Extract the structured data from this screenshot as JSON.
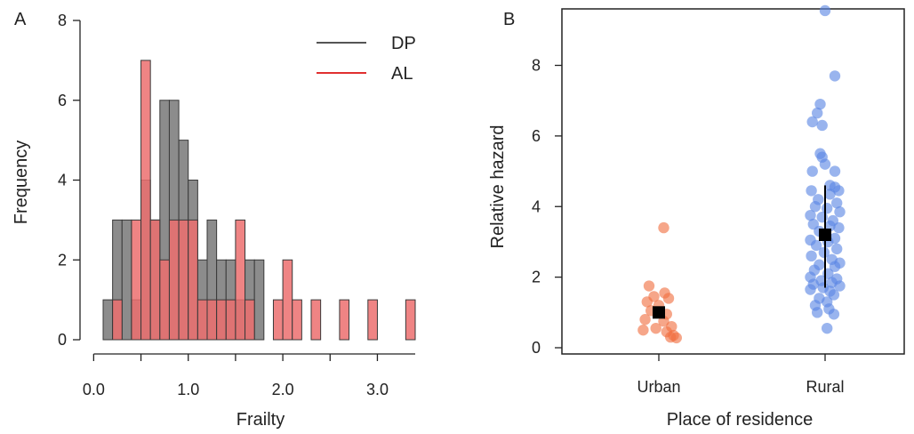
{
  "chart_data": [
    {
      "type": "bar",
      "panel_label": "A",
      "xlabel": "Frailty",
      "ylabel": "Frequency",
      "xlim": [
        0.1,
        3.4
      ],
      "ylim": [
        0,
        8
      ],
      "xticks": [
        0.0,
        1.0,
        2.0,
        3.0
      ],
      "xtick_labels": [
        "0.0",
        "1.0",
        "2.0",
        "3.0"
      ],
      "yticks": [
        0,
        2,
        4,
        6,
        8
      ],
      "ytick_labels": [
        "0",
        "2",
        "4",
        "6",
        "8"
      ],
      "legend_position": "top-right",
      "bin_width": 0.1,
      "x": [
        0.15,
        0.25,
        0.35,
        0.45,
        0.55,
        0.65,
        0.75,
        0.85,
        0.95,
        1.05,
        1.15,
        1.25,
        1.35,
        1.45,
        1.55,
        1.65,
        1.75,
        1.85,
        1.95,
        2.05,
        2.15,
        2.25,
        2.35,
        2.45,
        2.55,
        2.65,
        2.75,
        2.85,
        2.95,
        3.05,
        3.15,
        3.25,
        3.35
      ],
      "series": [
        {
          "name": "DP",
          "color": "#8c8c8c",
          "line_color": "#555555",
          "values": [
            1,
            3,
            3,
            1,
            4,
            3,
            6,
            6,
            5,
            4,
            2,
            3,
            2,
            2,
            1,
            2,
            2,
            0,
            0,
            0,
            0,
            0,
            0,
            0,
            0,
            0,
            0,
            0,
            0,
            0,
            0,
            0,
            0
          ]
        },
        {
          "name": "AL",
          "color": "#ec6f6f",
          "line_color": "#e03030",
          "values": [
            0,
            1,
            0,
            3,
            7,
            3,
            2,
            3,
            3,
            3,
            1,
            1,
            1,
            1,
            3,
            1,
            0,
            0,
            1,
            2,
            1,
            0,
            1,
            0,
            0,
            1,
            0,
            0,
            1,
            0,
            0,
            0,
            1
          ]
        }
      ]
    },
    {
      "type": "scatter",
      "panel_label": "B",
      "xlabel": "Place of residence",
      "ylabel": "Relative hazard",
      "categories": [
        "Urban",
        "Rural"
      ],
      "ylim": [
        0,
        9.6
      ],
      "yticks": [
        0,
        2,
        4,
        6,
        8
      ],
      "ytick_labels": [
        "0",
        "2",
        "4",
        "6",
        "8"
      ],
      "series": [
        {
          "name": "Urban",
          "color": "#f07040",
          "points": [
            [
              -0.1,
              1.75
            ],
            [
              0.06,
              1.55
            ],
            [
              -0.05,
              1.45
            ],
            [
              0.1,
              1.4
            ],
            [
              -0.12,
              1.3
            ],
            [
              0.0,
              1.2
            ],
            [
              -0.08,
              1.05
            ],
            [
              0.08,
              0.95
            ],
            [
              -0.14,
              0.8
            ],
            [
              0.05,
              0.75
            ],
            [
              0.13,
              0.6
            ],
            [
              -0.03,
              0.55
            ],
            [
              -0.16,
              0.5
            ],
            [
              0.08,
              0.45
            ],
            [
              0.12,
              0.3
            ],
            [
              0.18,
              0.28
            ],
            [
              0.15,
              0.35
            ],
            [
              0.05,
              3.4
            ]
          ],
          "mean": 1.0,
          "ci": [
            0.9,
            1.1
          ]
        },
        {
          "name": "Rural",
          "color": "#5a86e4",
          "points": [
            [
              0.0,
              9.55
            ],
            [
              0.1,
              7.7
            ],
            [
              -0.05,
              6.9
            ],
            [
              -0.08,
              6.65
            ],
            [
              -0.13,
              6.4
            ],
            [
              -0.03,
              6.3
            ],
            [
              -0.05,
              5.5
            ],
            [
              -0.03,
              5.4
            ],
            [
              0.0,
              5.2
            ],
            [
              -0.13,
              5.0
            ],
            [
              0.1,
              5.0
            ],
            [
              0.05,
              4.6
            ],
            [
              0.1,
              4.55
            ],
            [
              -0.14,
              4.45
            ],
            [
              0.14,
              4.45
            ],
            [
              0.05,
              4.35
            ],
            [
              -0.07,
              4.2
            ],
            [
              0.12,
              4.1
            ],
            [
              -0.1,
              4.0
            ],
            [
              0.02,
              3.95
            ],
            [
              0.15,
              3.85
            ],
            [
              -0.15,
              3.75
            ],
            [
              -0.03,
              3.7
            ],
            [
              0.08,
              3.6
            ],
            [
              -0.12,
              3.5
            ],
            [
              0.05,
              3.45
            ],
            [
              0.14,
              3.4
            ],
            [
              -0.06,
              3.3
            ],
            [
              0.1,
              3.1
            ],
            [
              -0.15,
              3.05
            ],
            [
              0.03,
              3.0
            ],
            [
              -0.09,
              2.9
            ],
            [
              0.12,
              2.8
            ],
            [
              -0.01,
              2.7
            ],
            [
              -0.14,
              2.6
            ],
            [
              0.07,
              2.5
            ],
            [
              0.15,
              2.4
            ],
            [
              -0.06,
              2.35
            ],
            [
              0.1,
              2.3
            ],
            [
              -0.11,
              2.2
            ],
            [
              0.03,
              2.1
            ],
            [
              -0.15,
              2.0
            ],
            [
              0.12,
              1.95
            ],
            [
              -0.04,
              1.9
            ],
            [
              0.07,
              1.85
            ],
            [
              -0.12,
              1.8
            ],
            [
              0.15,
              1.75
            ],
            [
              -0.02,
              1.7
            ],
            [
              -0.15,
              1.65
            ],
            [
              0.05,
              1.6
            ],
            [
              0.09,
              1.5
            ],
            [
              -0.06,
              1.4
            ],
            [
              0.02,
              1.3
            ],
            [
              -0.1,
              1.2
            ],
            [
              0.04,
              1.1
            ],
            [
              -0.08,
              1.0
            ],
            [
              0.09,
              0.95
            ],
            [
              0.02,
              0.55
            ]
          ],
          "mean": 3.2,
          "ci": [
            1.7,
            4.6
          ]
        }
      ]
    }
  ]
}
